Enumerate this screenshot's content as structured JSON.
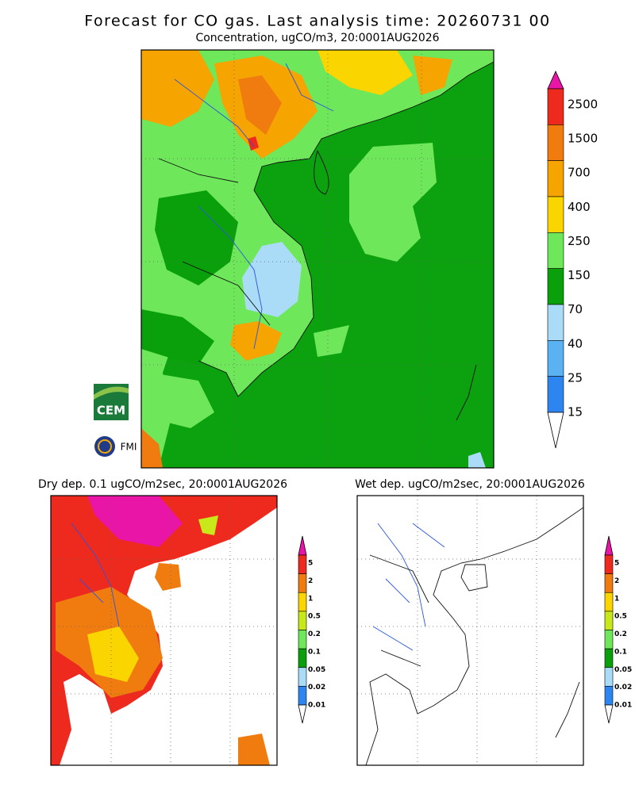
{
  "title": "Forecast for CO gas. Last analysis time: 20260731 00",
  "panels": [
    {
      "subtitle": "Concentration, ugCO/m3, 20:0001AUG2026",
      "legend": {
        "labels": [
          "2500",
          "1500",
          "700",
          "400",
          "250",
          "150",
          "70",
          "40",
          "25",
          "15"
        ],
        "colors": [
          "#e815a6",
          "#ee2a1e",
          "#f07c10",
          "#f6a400",
          "#fbd500",
          "#6ee85a",
          "#0aa00b",
          "#aadcf8",
          "#5bb2f2",
          "#2d86f0",
          "#ffffff"
        ]
      }
    },
    {
      "subtitle": "Dry dep. 0.1 ugCO/m2sec, 20:0001AUG2026",
      "legend": {
        "labels": [
          "5",
          "2",
          "1",
          "0.5",
          "0.2",
          "0.1",
          "0.05",
          "0.02",
          "0.01"
        ],
        "colors": [
          "#e815a6",
          "#ee2a1e",
          "#f07c10",
          "#fbd500",
          "#c8e81a",
          "#6ee85a",
          "#0aa00b",
          "#aadcf8",
          "#2d86f0",
          "#ffffff"
        ]
      }
    },
    {
      "subtitle": "Wet dep. ugCO/m2sec, 20:0001AUG2026",
      "legend": {
        "labels": [
          "5",
          "2",
          "1",
          "0.5",
          "0.2",
          "0.1",
          "0.05",
          "0.02",
          "0.01"
        ],
        "colors": [
          "#e815a6",
          "#ee2a1e",
          "#f07c10",
          "#fbd500",
          "#c8e81a",
          "#6ee85a",
          "#0aa00b",
          "#aadcf8",
          "#2d86f0",
          "#ffffff"
        ]
      }
    }
  ],
  "logos": [
    "CEM",
    "FMI"
  ]
}
